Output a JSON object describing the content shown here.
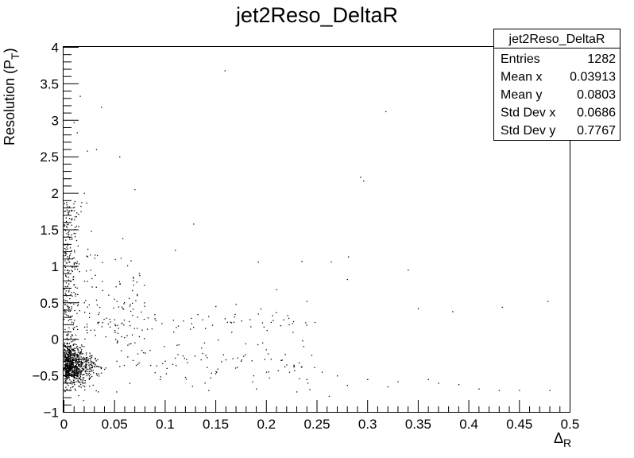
{
  "chart_data": {
    "type": "scatter",
    "title": "jet2Reso_DeltaR",
    "xlabel": "Δ",
    "xlabel_sub": "R",
    "ylabel": "Resolution (P",
    "ylabel_sub": "T",
    "ylabel_close": ")",
    "xlim": [
      0,
      0.5
    ],
    "ylim": [
      -1,
      4
    ],
    "x_ticks": [
      0,
      0.05,
      0.1,
      0.15,
      0.2,
      0.25,
      0.3,
      0.35,
      0.4,
      0.45,
      0.5
    ],
    "x_tick_labels": [
      "0",
      "0.05",
      "0.1",
      "0.15",
      "0.2",
      "0.25",
      "0.3",
      "0.35",
      "0.4",
      "0.45",
      "0.5"
    ],
    "y_ticks": [
      -1,
      -0.5,
      0,
      0.5,
      1,
      1.5,
      2,
      2.5,
      3,
      3.5,
      4
    ],
    "y_tick_labels": [
      "−1",
      "−0.5",
      "0",
      "0.5",
      "1",
      "1.5",
      "2",
      "2.5",
      "3",
      "3.5",
      "4"
    ],
    "grid": false,
    "legend": "none",
    "marker_color": "#000000",
    "stats_box": {
      "title": "jet2Reso_DeltaR",
      "rows": [
        {
          "label": "Entries",
          "value": "1282"
        },
        {
          "label": "Mean x",
          "value": "0.03913"
        },
        {
          "label": "Mean y",
          "value": "0.0803"
        },
        {
          "label": "Std Dev x",
          "value": "0.0686"
        },
        {
          "label": "Std Dev y",
          "value": "0.7767"
        }
      ]
    },
    "points": [
      [
        0.159,
        3.68
      ],
      [
        0.016,
        3.33
      ],
      [
        0.037,
        3.18
      ],
      [
        0.318,
        3.12
      ],
      [
        0.01,
        2.97
      ],
      [
        0.013,
        2.83
      ],
      [
        0.023,
        2.58
      ],
      [
        0.032,
        2.6
      ],
      [
        0.055,
        2.5
      ],
      [
        0.296,
        2.17
      ],
      [
        0.293,
        2.22
      ],
      [
        0.07,
        2.05
      ],
      [
        0.02,
        2.0
      ],
      [
        0.128,
        1.58
      ],
      [
        0.027,
        1.48
      ],
      [
        0.058,
        1.38
      ],
      [
        0.11,
        1.22
      ],
      [
        0.192,
        1.06
      ],
      [
        0.235,
        1.07
      ],
      [
        0.264,
        1.06
      ],
      [
        0.281,
        1.13
      ],
      [
        0.34,
        0.95
      ],
      [
        0.28,
        0.82
      ],
      [
        0.21,
        0.68
      ],
      [
        0.478,
        0.52
      ],
      [
        0.433,
        0.44
      ],
      [
        0.384,
        0.38
      ],
      [
        0.35,
        0.42
      ],
      [
        0.24,
        0.52
      ],
      [
        0.15,
        0.45
      ],
      [
        0.17,
        0.48
      ],
      [
        0.052,
        -0.72
      ],
      [
        0.065,
        -0.6
      ],
      [
        0.143,
        -0.7
      ],
      [
        0.175,
        -0.3
      ],
      [
        0.2,
        -0.45
      ],
      [
        0.22,
        -0.35
      ],
      [
        0.255,
        -0.45
      ],
      [
        0.27,
        -0.5
      ],
      [
        0.3,
        -0.55
      ],
      [
        0.33,
        -0.58
      ],
      [
        0.36,
        -0.55
      ],
      [
        0.37,
        -0.6
      ],
      [
        0.39,
        -0.62
      ],
      [
        0.41,
        -0.68
      ],
      [
        0.43,
        -0.7
      ],
      [
        0.45,
        -0.7
      ],
      [
        0.48,
        -0.7
      ],
      [
        0.32,
        -0.65
      ],
      [
        0.23,
        -0.72
      ],
      [
        0.262,
        -0.78
      ],
      [
        0.19,
        -0.68
      ],
      [
        0.12,
        -0.52
      ],
      [
        0.1,
        -0.3
      ],
      [
        0.085,
        -0.15
      ],
      [
        0.095,
        -0.55
      ],
      [
        0.14,
        -0.22
      ],
      [
        0.16,
        -0.28
      ],
      [
        0.28,
        -0.63
      ],
      [
        0.24,
        -0.55
      ]
    ]
  }
}
